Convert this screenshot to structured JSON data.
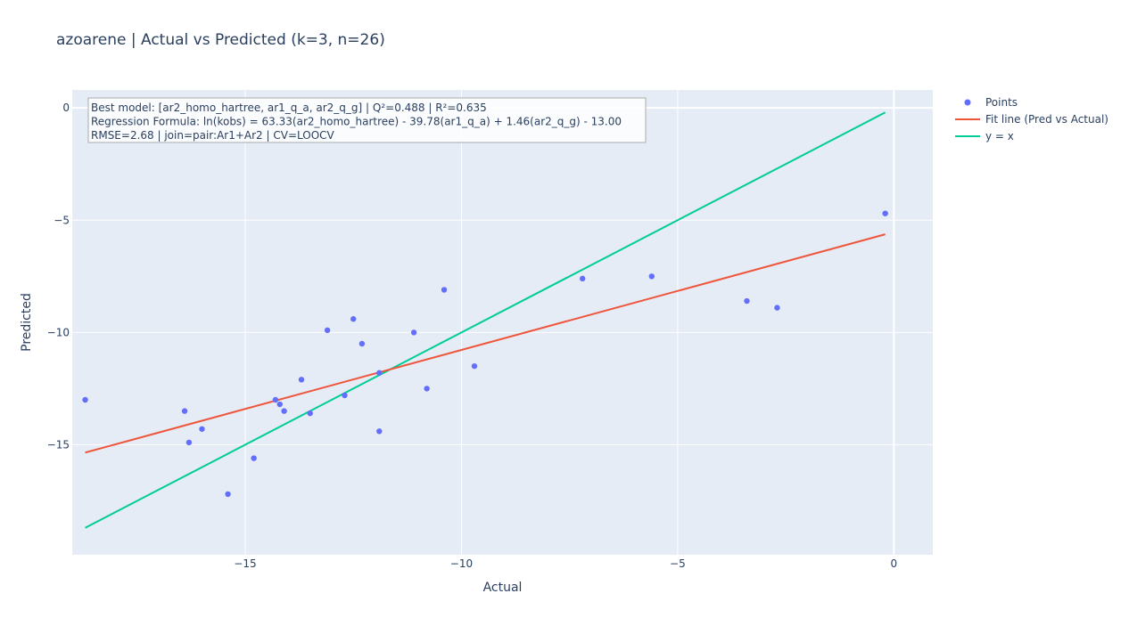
{
  "chart_data": {
    "type": "scatter",
    "title": "azoarene | Actual vs Predicted (k=3, n=26)",
    "xlabel": "Actual",
    "ylabel": "Predicted",
    "xlim": [
      -19.0,
      0.9
    ],
    "ylim": [
      -19.9,
      0.8
    ],
    "x_ticks": [
      -15,
      -10,
      -5,
      0
    ],
    "y_ticks": [
      0,
      -5,
      -10,
      -15
    ],
    "grid": true,
    "legend_position": "top-right",
    "annotation": [
      "Best model: [ar2_homo_hartree, ar1_q_a, ar2_q_g] | Q²=0.488 | R²=0.635",
      "Regression Formula: ln(kobs) = 63.33(ar2_homo_hartree) - 39.78(ar1_q_a) + 1.46(ar2_q_g) - 13.00",
      "RMSE=2.68 | join=pair:Ar1+Ar2 | CV=LOOCV"
    ],
    "series": [
      {
        "name": "Points",
        "mode": "markers",
        "color": "#636efa",
        "x": [
          -18.7,
          -16.4,
          -16.3,
          -16.0,
          -15.4,
          -14.8,
          -14.3,
          -14.2,
          -14.1,
          -13.7,
          -13.5,
          -13.1,
          -12.7,
          -12.5,
          -12.3,
          -11.9,
          -11.9,
          -11.1,
          -10.8,
          -10.4,
          -9.7,
          -7.2,
          -5.6,
          -3.4,
          -2.7,
          -0.2
        ],
        "y": [
          -13.0,
          -13.5,
          -14.9,
          -14.3,
          -17.2,
          -15.6,
          -13.0,
          -13.2,
          -13.5,
          -12.1,
          -13.6,
          -9.9,
          -12.8,
          -9.4,
          -10.5,
          -14.4,
          -11.8,
          -10.0,
          -12.5,
          -8.1,
          -11.5,
          -7.6,
          -7.5,
          -8.6,
          -8.9,
          -4.7
        ]
      },
      {
        "name": "Fit line (Pred vs Actual)",
        "mode": "lines",
        "color": "#ef553b",
        "x": [
          -18.7,
          -0.2
        ],
        "y": [
          -15.35,
          -5.63
        ]
      },
      {
        "name": "y = x",
        "mode": "lines",
        "color": "#00cc96",
        "x": [
          -18.7,
          -0.2
        ],
        "y": [
          -18.7,
          -0.2
        ]
      }
    ]
  }
}
